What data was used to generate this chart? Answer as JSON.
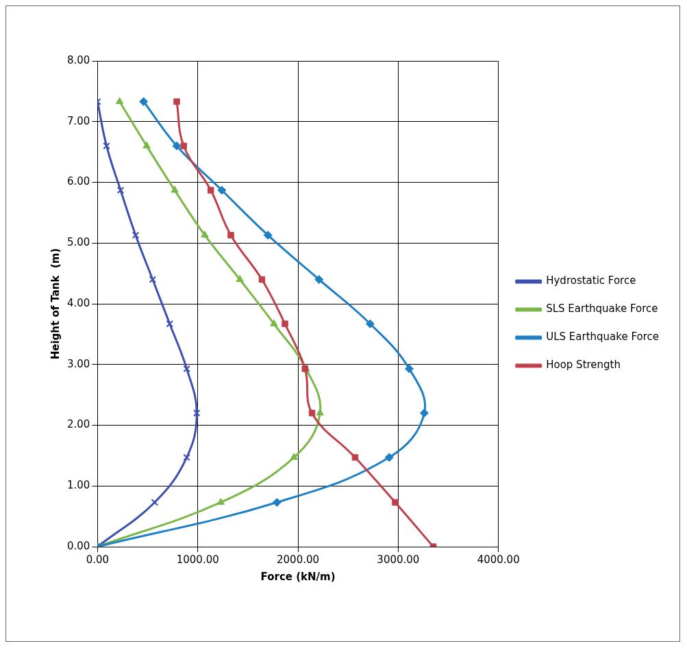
{
  "chart_data": {
    "type": "line",
    "xlabel": "Force (kN/m)",
    "ylabel": "Height of Tank  (m)",
    "xlim": [
      0,
      4000
    ],
    "xticks": [
      {
        "value": 0,
        "label": "0.00"
      },
      {
        "value": 1000,
        "label": "1000.00"
      },
      {
        "value": 2000,
        "label": "2000.00"
      },
      {
        "value": 3000,
        "label": "3000.00"
      },
      {
        "value": 4000,
        "label": "4000.00"
      }
    ],
    "ylim": [
      0,
      8
    ],
    "yticks": [
      {
        "value": 0,
        "label": "0.00"
      },
      {
        "value": 1,
        "label": "1.00"
      },
      {
        "value": 2,
        "label": "2.00"
      },
      {
        "value": 3,
        "label": "3.00"
      },
      {
        "value": 4,
        "label": "4.00"
      },
      {
        "value": 5,
        "label": "5.00"
      },
      {
        "value": 6,
        "label": "6.00"
      },
      {
        "value": 7,
        "label": "7.00"
      },
      {
        "value": 8,
        "label": "8.00"
      }
    ],
    "grid": true,
    "legend": "right",
    "series": [
      {
        "name": "Hydrostatic Force",
        "color": "#3a4fb0",
        "marker": "cross",
        "x": [
          0,
          90,
          230,
          380,
          550,
          720,
          890,
          990,
          890,
          570,
          0
        ],
        "values": [
          7.33,
          6.6,
          5.87,
          5.13,
          4.4,
          3.67,
          2.93,
          2.2,
          1.47,
          0.73,
          0
        ]
      },
      {
        "name": "SLS Earthquake Force",
        "color": "#7ab648",
        "marker": "triangle",
        "x": [
          220,
          490,
          770,
          1070,
          1420,
          1760,
          2080,
          2220,
          1960,
          1230,
          0
        ],
        "values": [
          7.33,
          6.6,
          5.87,
          5.13,
          4.4,
          3.67,
          2.93,
          2.2,
          1.47,
          0.73,
          0
        ]
      },
      {
        "name": "ULS Earthquake Force",
        "color": "#1f7fc4",
        "marker": "diamond",
        "x": [
          460,
          790,
          1240,
          1700,
          2210,
          2720,
          3110,
          3260,
          2910,
          1790,
          0
        ],
        "values": [
          7.33,
          6.6,
          5.87,
          5.13,
          4.4,
          3.67,
          2.93,
          2.2,
          1.47,
          0.73,
          0
        ]
      },
      {
        "name": "Hoop Strength",
        "color": "#c0404a",
        "marker": "square",
        "x": [
          790,
          860,
          1130,
          1330,
          1640,
          1870,
          2070,
          2140,
          2570,
          2970,
          3350
        ],
        "values": [
          7.33,
          6.6,
          5.87,
          5.13,
          4.4,
          3.67,
          2.93,
          2.2,
          1.47,
          0.73,
          0
        ]
      }
    ]
  }
}
